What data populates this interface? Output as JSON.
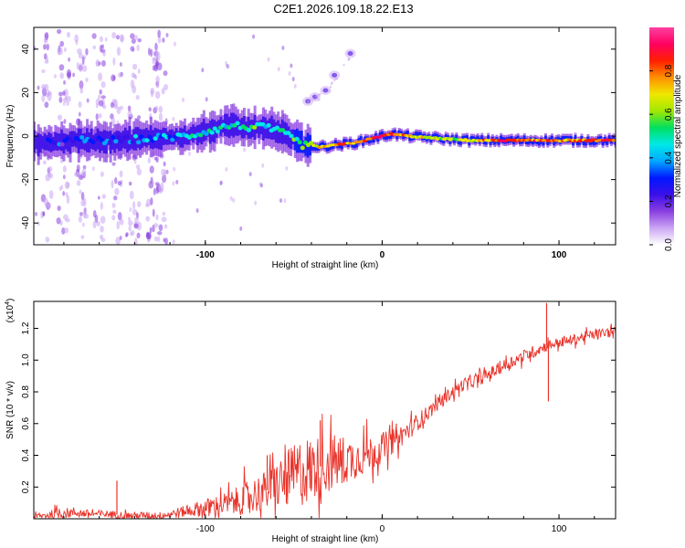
{
  "figure_title": "C2E1.2026.109.18.22.E13",
  "colors": {
    "frame": "#000000",
    "snr_line": "#e8332a",
    "background": "#ffffff"
  },
  "chart_data": [
    {
      "type": "heatmap",
      "title": "C2E1.2026.109.18.22.E13",
      "xlabel": "Height of straight line (km)",
      "ylabel": "Frequency (Hz)",
      "xlim": [
        -197,
        132
      ],
      "ylim": [
        -50,
        50
      ],
      "x_ticks": [
        -100,
        0,
        100
      ],
      "x_tick_labels": [
        "-100",
        "0",
        "100"
      ],
      "y_ticks": [
        -40,
        -20,
        0,
        20,
        40
      ],
      "y_tick_labels": [
        "-40",
        "-20",
        "0",
        "20",
        "40"
      ],
      "ridge": {
        "x": [
          -190,
          -170,
          -150,
          -130,
          -110,
          -95,
          -85,
          -75,
          -65,
          -55,
          -45,
          -35,
          -25,
          -15,
          -5,
          5,
          15,
          30,
          50,
          70,
          90,
          110,
          130
        ],
        "freq": [
          -3,
          -2,
          -2,
          -1,
          0,
          3,
          5,
          4,
          4,
          1,
          -4,
          -5,
          -4,
          -3,
          -1,
          1,
          0,
          -1,
          -2,
          -2,
          -2,
          -2,
          -2
        ],
        "amplitude": [
          0.25,
          0.3,
          0.3,
          0.35,
          0.4,
          0.45,
          0.45,
          0.5,
          0.5,
          0.45,
          0.55,
          0.75,
          0.8,
          0.8,
          0.85,
          0.85,
          0.7,
          0.6,
          0.65,
          0.85,
          0.8,
          0.75,
          0.85
        ]
      },
      "branch": {
        "x": [
          -42,
          -38,
          -32,
          -27,
          -18
        ],
        "freq": [
          16,
          18,
          21,
          28,
          38
        ]
      },
      "colorbar": {
        "label": "Normalized spectral amplitude",
        "range": [
          0,
          1
        ],
        "ticks": [
          0.0,
          0.2,
          0.4,
          0.6,
          0.8
        ],
        "tick_labels": [
          "0.0",
          "0.2",
          "0.4",
          "0.6",
          "0.8"
        ],
        "colormap": [
          "#ffffff",
          "#cba6f4",
          "#8a3fe0",
          "#3a10e8",
          "#0018ff",
          "#00a8ff",
          "#00e8e8",
          "#00e060",
          "#a0e800",
          "#f0e800",
          "#ff9000",
          "#ff2000",
          "#ff0060",
          "#ff40a0"
        ]
      }
    },
    {
      "type": "line",
      "xlabel": "Height of straight line (km)",
      "ylabel": "SNR (10 * v/v)",
      "y_multiplier": "(x10",
      "y_multiplier_exp": "4",
      "y_multiplier_close": ")",
      "xlim": [
        -197,
        132
      ],
      "ylim": [
        0,
        1.37
      ],
      "x_ticks": [
        -100,
        0,
        100
      ],
      "x_tick_labels": [
        "-100",
        "0",
        "100"
      ],
      "y_ticks": [
        0.2,
        0.4,
        0.6,
        0.8,
        1.0,
        1.2
      ],
      "y_tick_labels": [
        "0.2",
        "0.4",
        "0.6",
        "0.8",
        "1.0",
        "1.2"
      ],
      "series": [
        {
          "name": "SNR",
          "x": [
            -197,
            -185,
            -175,
            -165,
            -155,
            -145,
            -135,
            -125,
            -115,
            -105,
            -95,
            -85,
            -75,
            -65,
            -55,
            -45,
            -35,
            -25,
            -15,
            -5,
            5,
            15,
            25,
            35,
            45,
            55,
            65,
            75,
            85,
            95,
            105,
            115,
            125,
            132
          ],
          "y": [
            0.01,
            0.03,
            0.04,
            0.03,
            0.03,
            0.02,
            0.02,
            0.02,
            0.04,
            0.06,
            0.08,
            0.1,
            0.14,
            0.18,
            0.24,
            0.3,
            0.33,
            0.36,
            0.38,
            0.42,
            0.48,
            0.56,
            0.66,
            0.76,
            0.84,
            0.88,
            0.94,
            1.0,
            1.05,
            1.1,
            1.12,
            1.15,
            1.17,
            1.18
          ],
          "noise": [
            0.02,
            0.04,
            0.04,
            0.03,
            0.03,
            0.03,
            0.03,
            0.03,
            0.04,
            0.06,
            0.08,
            0.1,
            0.14,
            0.16,
            0.22,
            0.28,
            0.24,
            0.22,
            0.16,
            0.14,
            0.1,
            0.08,
            0.06,
            0.05,
            0.05,
            0.05,
            0.05,
            0.05,
            0.05,
            0.04,
            0.04,
            0.04,
            0.04,
            0.04
          ]
        }
      ],
      "spikes": [
        {
          "x": -150,
          "y": 0.24
        },
        {
          "x": -65,
          "y": 0.4
        },
        {
          "x": -35,
          "y": 0.62
        },
        {
          "x": 8,
          "y": 0.6
        },
        {
          "x": 93,
          "y": 1.36
        },
        {
          "x": 94,
          "y": 0.74
        }
      ]
    }
  ]
}
